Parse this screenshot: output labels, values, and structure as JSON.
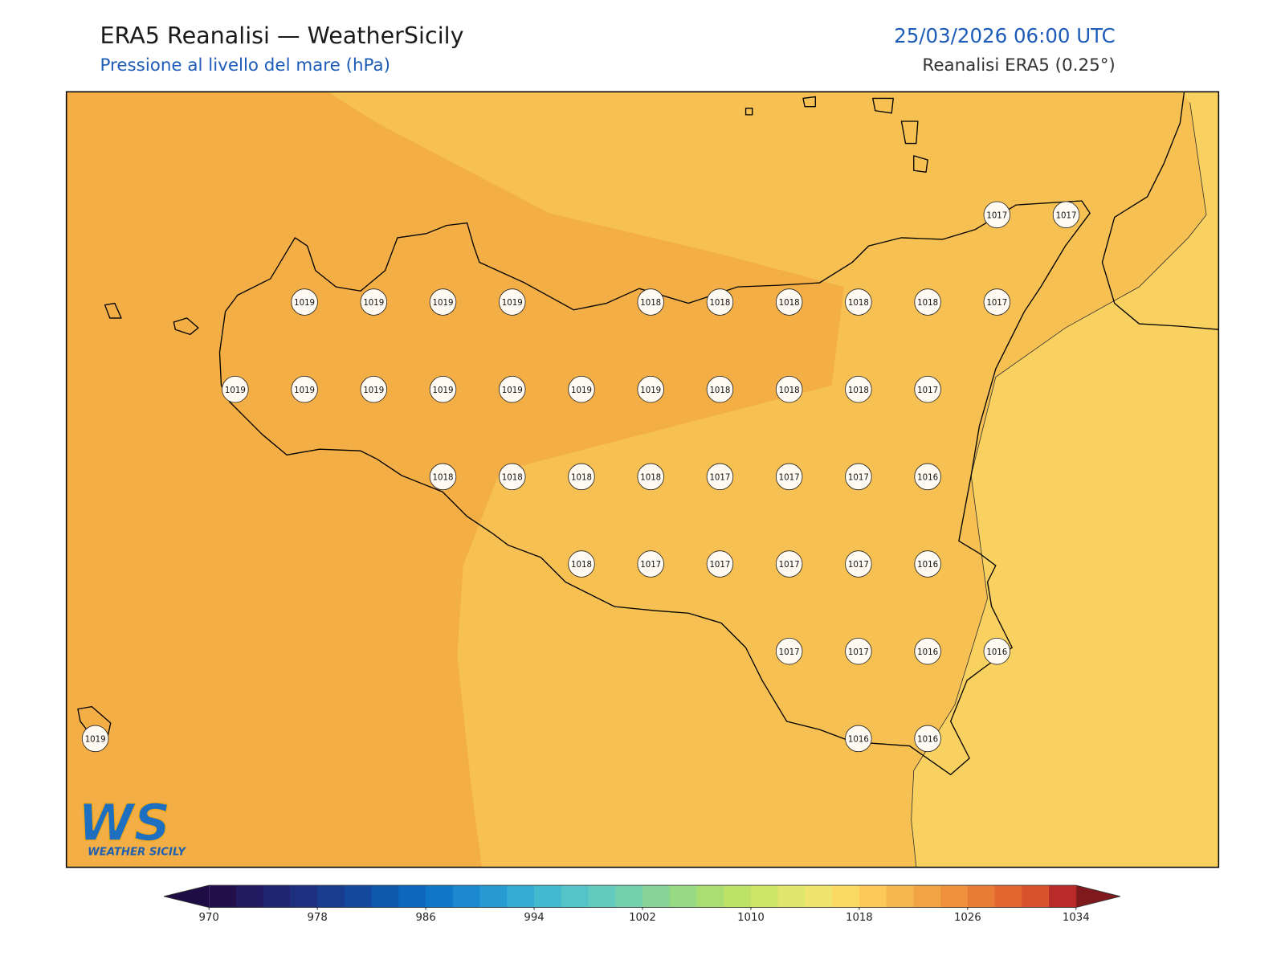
{
  "header": {
    "title": "ERA5 Reanalisi — WeatherSicily",
    "subtitle": "Pressione al livello del mare (hPa)",
    "datetime": "25/03/2026 06:00 UTC",
    "source": "Reanalisi ERA5 (0.25°)"
  },
  "map": {
    "stations": [
      1017,
      1017,
      1019,
      1019,
      1019,
      1019,
      1018,
      1018,
      1018,
      1018,
      1018,
      1017,
      1019,
      1019,
      1019,
      1019,
      1019,
      1019,
      1019,
      1018,
      1018,
      1018,
      1017,
      1018,
      1018,
      1018,
      1018,
      1017,
      1017,
      1017,
      1016,
      1018,
      1017,
      1017,
      1017,
      1017,
      1016,
      1017,
      1017,
      1016,
      1016,
      1016,
      1016,
      1019
    ]
  },
  "colorbar": {
    "lim": [
      970,
      1034
    ],
    "ticks": [
      970,
      978,
      986,
      994,
      1002,
      1010,
      1018,
      1026,
      1034
    ],
    "colors": [
      "#230f4c",
      "#231a62",
      "#212571",
      "#1d3080",
      "#183c90",
      "#134a9e",
      "#0e58ad",
      "#0d67bb",
      "#1077c6",
      "#1b88cf",
      "#279ad3",
      "#35acd4",
      "#44bad0",
      "#55c4c8",
      "#63cbbd",
      "#74d0aa",
      "#86d596",
      "#98da83",
      "#abde72",
      "#bde266",
      "#cfe566",
      "#e0e66d",
      "#efe46e",
      "#fbda64",
      "#fcc95a",
      "#f7b74e",
      "#f2a444",
      "#ee903c",
      "#e97c34",
      "#e2672e",
      "#d8522b",
      "#b92b29"
    ],
    "under": "#1e0d45",
    "over": "#7e1a1d"
  },
  "logo": {
    "mark": "WS",
    "text": "WEATHER SICILY"
  }
}
